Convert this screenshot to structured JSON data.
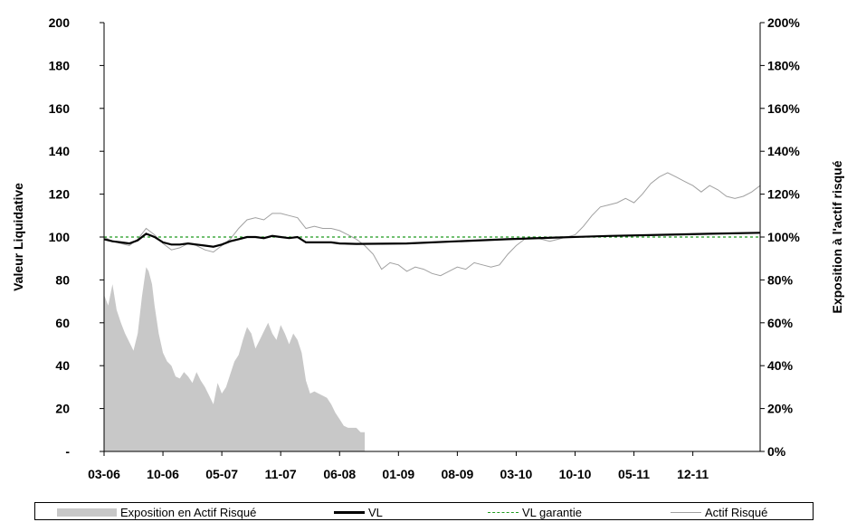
{
  "chart_data": {
    "type": "line",
    "y_left": {
      "label": "Valeur Liquidative",
      "ticks": [
        "-",
        "20",
        "40",
        "60",
        "80",
        "100",
        "120",
        "140",
        "160",
        "180",
        "200"
      ],
      "range": [
        0,
        200
      ]
    },
    "y_right": {
      "label": "Exposition à l'actif risqué",
      "ticks": [
        "0%",
        "20%",
        "40%",
        "60%",
        "80%",
        "100%",
        "120%",
        "140%",
        "160%",
        "180%",
        "200%"
      ],
      "range": [
        0,
        2
      ]
    },
    "x": {
      "tick_labels": [
        "03-06",
        "10-06",
        "05-07",
        "11-07",
        "06-08",
        "01-09",
        "08-09",
        "03-10",
        "10-10",
        "05-11",
        "12-11"
      ],
      "range_months": [
        0,
        78
      ],
      "start": "03-06"
    },
    "series": [
      {
        "name": "Exposition en Actif Risqué",
        "kind": "area",
        "axis": "right",
        "color": "#c8c8c8",
        "points": [
          [
            0,
            0.73
          ],
          [
            0.5,
            0.68
          ],
          [
            1,
            0.78
          ],
          [
            1.5,
            0.66
          ],
          [
            2,
            0.6
          ],
          [
            2.5,
            0.55
          ],
          [
            3,
            0.51
          ],
          [
            3.5,
            0.47
          ],
          [
            4,
            0.55
          ],
          [
            4.5,
            0.72
          ],
          [
            5,
            0.86
          ],
          [
            5.3,
            0.84
          ],
          [
            5.7,
            0.78
          ],
          [
            6,
            0.68
          ],
          [
            6.5,
            0.55
          ],
          [
            7,
            0.46
          ],
          [
            7.5,
            0.42
          ],
          [
            8,
            0.4
          ],
          [
            8.5,
            0.35
          ],
          [
            9,
            0.34
          ],
          [
            9.5,
            0.37
          ],
          [
            10,
            0.35
          ],
          [
            10.5,
            0.32
          ],
          [
            11,
            0.37
          ],
          [
            11.5,
            0.33
          ],
          [
            12,
            0.3
          ],
          [
            12.5,
            0.26
          ],
          [
            13,
            0.22
          ],
          [
            13.5,
            0.32
          ],
          [
            14,
            0.27
          ],
          [
            14.5,
            0.3
          ],
          [
            15,
            0.36
          ],
          [
            15.5,
            0.42
          ],
          [
            16,
            0.45
          ],
          [
            16.5,
            0.52
          ],
          [
            17,
            0.58
          ],
          [
            17.5,
            0.55
          ],
          [
            18,
            0.48
          ],
          [
            18.5,
            0.52
          ],
          [
            19,
            0.56
          ],
          [
            19.5,
            0.6
          ],
          [
            20,
            0.55
          ],
          [
            20.5,
            0.52
          ],
          [
            21,
            0.59
          ],
          [
            21.5,
            0.55
          ],
          [
            22,
            0.5
          ],
          [
            22.5,
            0.55
          ],
          [
            23,
            0.52
          ],
          [
            23.5,
            0.46
          ],
          [
            24,
            0.33
          ],
          [
            24.5,
            0.27
          ],
          [
            25,
            0.28
          ],
          [
            25.5,
            0.27
          ],
          [
            26,
            0.26
          ],
          [
            26.5,
            0.25
          ],
          [
            27,
            0.22
          ],
          [
            27.5,
            0.18
          ],
          [
            28,
            0.15
          ],
          [
            28.5,
            0.12
          ],
          [
            29,
            0.11
          ],
          [
            30,
            0.11
          ],
          [
            30.5,
            0.09
          ],
          [
            31,
            0.09
          ],
          [
            31,
            0
          ]
        ]
      },
      {
        "name": "VL",
        "kind": "line",
        "axis": "left",
        "color": "#000000",
        "points": [
          [
            0,
            99
          ],
          [
            1,
            98
          ],
          [
            2,
            97.5
          ],
          [
            3,
            97
          ],
          [
            4,
            98.5
          ],
          [
            5,
            101.5
          ],
          [
            6,
            100
          ],
          [
            7,
            97.5
          ],
          [
            8,
            96.5
          ],
          [
            9,
            96.5
          ],
          [
            10,
            97
          ],
          [
            11,
            96.5
          ],
          [
            12,
            96
          ],
          [
            13,
            95.5
          ],
          [
            14,
            96.5
          ],
          [
            15,
            98
          ],
          [
            16,
            99
          ],
          [
            17,
            100
          ],
          [
            18,
            100
          ],
          [
            19,
            99.5
          ],
          [
            20,
            100.5
          ],
          [
            21,
            100
          ],
          [
            22,
            99.5
          ],
          [
            23,
            100
          ],
          [
            24,
            97.5
          ],
          [
            25,
            97.5
          ],
          [
            26,
            97.5
          ],
          [
            27,
            97.5
          ],
          [
            28,
            97
          ],
          [
            30,
            96.8
          ],
          [
            36,
            97
          ],
          [
            42,
            98
          ],
          [
            48,
            99
          ],
          [
            54,
            99.8
          ],
          [
            60,
            100.5
          ],
          [
            66,
            101
          ],
          [
            72,
            101.5
          ],
          [
            78,
            102
          ]
        ]
      },
      {
        "name": "VL garantie",
        "kind": "dashed",
        "axis": "left",
        "color": "#1f9a1f",
        "points": [
          [
            0,
            100
          ],
          [
            78,
            100
          ]
        ]
      },
      {
        "name": "Actif Risqué",
        "kind": "line",
        "axis": "left",
        "color": "#a0a0a0",
        "points": [
          [
            0,
            100
          ],
          [
            1,
            98
          ],
          [
            2,
            97
          ],
          [
            3,
            96
          ],
          [
            4,
            99
          ],
          [
            5,
            104
          ],
          [
            6,
            101
          ],
          [
            7,
            97
          ],
          [
            8,
            94
          ],
          [
            9,
            95
          ],
          [
            10,
            97
          ],
          [
            11,
            96
          ],
          [
            12,
            94
          ],
          [
            13,
            93
          ],
          [
            14,
            96
          ],
          [
            15,
            99
          ],
          [
            16,
            104
          ],
          [
            17,
            108
          ],
          [
            18,
            109
          ],
          [
            19,
            108
          ],
          [
            20,
            111
          ],
          [
            21,
            111
          ],
          [
            22,
            110
          ],
          [
            23,
            109
          ],
          [
            24,
            104
          ],
          [
            25,
            105
          ],
          [
            26,
            104
          ],
          [
            27,
            104
          ],
          [
            28,
            103
          ],
          [
            29,
            101
          ],
          [
            30,
            99
          ],
          [
            31,
            96
          ],
          [
            32,
            92
          ],
          [
            33,
            85
          ],
          [
            34,
            88
          ],
          [
            35,
            87
          ],
          [
            36,
            84
          ],
          [
            37,
            86
          ],
          [
            38,
            85
          ],
          [
            39,
            83
          ],
          [
            40,
            82
          ],
          [
            41,
            84
          ],
          [
            42,
            86
          ],
          [
            43,
            85
          ],
          [
            44,
            88
          ],
          [
            45,
            87
          ],
          [
            46,
            86
          ],
          [
            47,
            87
          ],
          [
            48,
            92
          ],
          [
            49,
            96
          ],
          [
            50,
            99
          ],
          [
            51,
            100
          ],
          [
            52,
            99
          ],
          [
            53,
            98
          ],
          [
            54,
            99
          ],
          [
            55,
            100
          ],
          [
            56,
            101
          ],
          [
            57,
            105
          ],
          [
            58,
            110
          ],
          [
            59,
            114
          ],
          [
            60,
            115
          ],
          [
            61,
            116
          ],
          [
            62,
            118
          ],
          [
            63,
            116
          ],
          [
            64,
            120
          ],
          [
            65,
            125
          ],
          [
            66,
            128
          ],
          [
            67,
            130
          ],
          [
            68,
            128
          ],
          [
            69,
            126
          ],
          [
            70,
            124
          ],
          [
            71,
            121
          ],
          [
            72,
            124
          ],
          [
            73,
            122
          ],
          [
            74,
            119
          ],
          [
            75,
            118
          ],
          [
            76,
            119
          ],
          [
            77,
            121
          ],
          [
            78,
            124
          ]
        ]
      }
    ],
    "legend": {
      "position": "bottom",
      "items": [
        "Exposition en Actif Risqué",
        "VL",
        "VL garantie",
        "Actif Risqué"
      ]
    }
  }
}
